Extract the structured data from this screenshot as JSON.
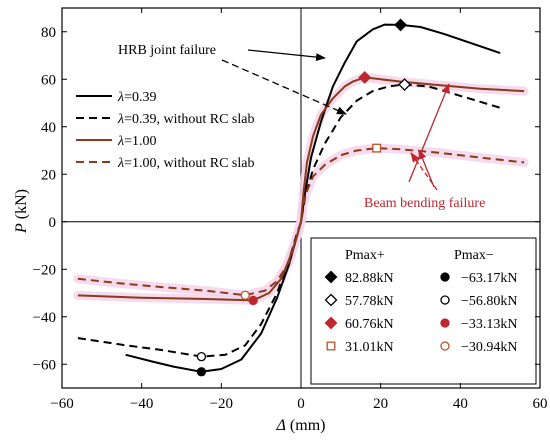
{
  "chart_data": {
    "type": "line",
    "xlabel": "Δ (mm)",
    "xlabel_symbol": "Δ",
    "xlabel_unit": " (mm)",
    "ylabel": "P (kN)",
    "ylabel_symbol": "P",
    "ylabel_unit": " (kN)",
    "xlim": [
      -60,
      60
    ],
    "ylim": [
      -70,
      90
    ],
    "xticks": [
      -60,
      -40,
      -20,
      0,
      20,
      40,
      60
    ],
    "yticks": [
      -60,
      -40,
      -20,
      0,
      20,
      40,
      60,
      80
    ],
    "grid": false,
    "series": [
      {
        "name": "λ=0.39",
        "name_symbol": "λ",
        "name_rest": "=0.39",
        "color": "#000000",
        "dash": "solid",
        "points": [
          [
            -44,
            -56
          ],
          [
            -37,
            -59
          ],
          [
            -32,
            -61
          ],
          [
            -25,
            -63.17
          ],
          [
            -20,
            -62
          ],
          [
            -15,
            -58
          ],
          [
            -10,
            -47
          ],
          [
            -6,
            -32
          ],
          [
            -3,
            -18
          ],
          [
            -1,
            -6
          ],
          [
            0,
            0
          ],
          [
            1,
            12
          ],
          [
            2.5,
            27
          ],
          [
            5,
            42
          ],
          [
            8,
            57
          ],
          [
            11,
            67
          ],
          [
            14,
            76
          ],
          [
            18,
            81
          ],
          [
            21,
            83
          ],
          [
            25,
            82.88
          ],
          [
            30,
            82
          ],
          [
            36,
            79
          ],
          [
            43,
            75
          ],
          [
            50,
            71
          ]
        ]
      },
      {
        "name": "λ=0.39, without RC slab",
        "name_symbol": "λ",
        "name_rest": "=0.39, without RC slab",
        "color": "#000000",
        "dash": "dashed",
        "points": [
          [
            -56,
            -49
          ],
          [
            -44,
            -52
          ],
          [
            -35,
            -54
          ],
          [
            -25,
            -56.8
          ],
          [
            -19,
            -56
          ],
          [
            -14,
            -52
          ],
          [
            -10,
            -43
          ],
          [
            -6,
            -30
          ],
          [
            -3,
            -16
          ],
          [
            -1,
            -5
          ],
          [
            0,
            0
          ],
          [
            1,
            10
          ],
          [
            3,
            22
          ],
          [
            6,
            33
          ],
          [
            10,
            44
          ],
          [
            14,
            51
          ],
          [
            18,
            55
          ],
          [
            22,
            57
          ],
          [
            26,
            57.78
          ],
          [
            32,
            57
          ],
          [
            38,
            54
          ],
          [
            44,
            51
          ],
          [
            50,
            48
          ]
        ]
      },
      {
        "name": "λ=1.00",
        "name_symbol": "λ",
        "name_rest": "=1.00",
        "color": "#8B3A1A",
        "dash": "solid",
        "points": [
          [
            -56,
            -31
          ],
          [
            -40,
            -32
          ],
          [
            -25,
            -32.5
          ],
          [
            -12,
            -33.13
          ],
          [
            -8,
            -30
          ],
          [
            -5,
            -24
          ],
          [
            -3,
            -16
          ],
          [
            -1,
            -6
          ],
          [
            0,
            0
          ],
          [
            0.6,
            12
          ],
          [
            1.5,
            25
          ],
          [
            3,
            36
          ],
          [
            5,
            45
          ],
          [
            8,
            52
          ],
          [
            11,
            57
          ],
          [
            13,
            59
          ],
          [
            16,
            60.76
          ],
          [
            25,
            59
          ],
          [
            35,
            57.5
          ],
          [
            45,
            56
          ],
          [
            56,
            55
          ]
        ]
      },
      {
        "name": "λ=1.00, without RC slab",
        "name_symbol": "λ",
        "name_rest": "=1.00, without RC slab",
        "color": "#8B3A1A",
        "dash": "dashed",
        "points": [
          [
            -56,
            -24
          ],
          [
            -45,
            -26
          ],
          [
            -35,
            -27.5
          ],
          [
            -24,
            -29
          ],
          [
            -14,
            -30.94
          ],
          [
            -9,
            -29
          ],
          [
            -6,
            -25
          ],
          [
            -3,
            -17
          ],
          [
            -1,
            -6
          ],
          [
            0,
            0
          ],
          [
            0.5,
            7
          ],
          [
            1.5,
            13
          ],
          [
            3,
            19
          ],
          [
            6,
            24
          ],
          [
            10,
            28
          ],
          [
            14,
            30
          ],
          [
            19,
            31.01
          ],
          [
            25,
            30.5
          ],
          [
            35,
            29
          ],
          [
            45,
            27
          ],
          [
            56,
            25
          ]
        ]
      }
    ],
    "annotations": [
      {
        "text": "HRB joint failure",
        "color": "#000000"
      },
      {
        "text": "Beam bending failure",
        "color": "#C0262D"
      }
    ],
    "peaks": {
      "headers": [
        "Pmax+",
        "Pmax−"
      ],
      "rows": [
        {
          "pos": "82.88kN",
          "neg": "−63.17kN",
          "pos_x": 25,
          "pos_y": 82.88,
          "neg_x": -25,
          "neg_y": -63.17,
          "pos_marker": "diamond-filled",
          "neg_marker": "circle-filled",
          "color": "#000000"
        },
        {
          "pos": "57.78kN",
          "neg": "−56.80kN",
          "pos_x": 26,
          "pos_y": 57.78,
          "neg_x": -25,
          "neg_y": -56.8,
          "pos_marker": "diamond-open",
          "neg_marker": "circle-open",
          "color": "#000000"
        },
        {
          "pos": "60.76kN",
          "neg": "−33.13kN",
          "pos_x": 16,
          "pos_y": 60.76,
          "neg_x": -12,
          "neg_y": -33.13,
          "pos_marker": "diamond-filled",
          "neg_marker": "circle-filled",
          "color": "#C0262D"
        },
        {
          "pos": "31.01kN",
          "neg": "−30.94kN",
          "pos_x": 19,
          "pos_y": 31.01,
          "neg_x": -14,
          "neg_y": -30.94,
          "pos_marker": "square-open",
          "neg_marker": "circle-open",
          "color": "#B5562A"
        }
      ]
    },
    "colors": {
      "highlight": "#F4D4EA",
      "red_marker": "#C0262D",
      "brown_line": "#8B3A1A"
    }
  }
}
